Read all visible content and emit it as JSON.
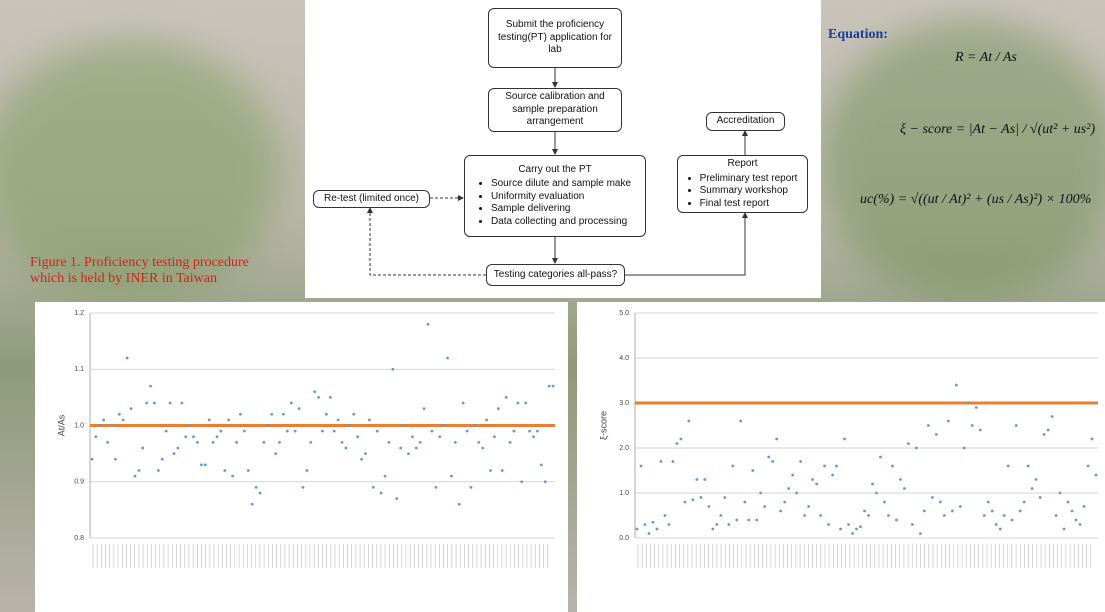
{
  "flowchart": {
    "nodes": [
      {
        "label": "Submit the proficiency testing(PT) application for lab"
      },
      {
        "label": "Source calibration and sample preparation arrangement"
      },
      {
        "label": "Carry out the PT",
        "items": [
          "Source dilute and sample make",
          "Uniformity evaluation",
          "Sample delivering",
          "Data collecting and processing"
        ]
      },
      {
        "label": "Re-test (limited once)"
      },
      {
        "label": "Testing categories all-pass?"
      },
      {
        "label": "Report",
        "items": [
          "Preliminary test report",
          "Summary workshop",
          "Final test report"
        ]
      },
      {
        "label": "Accreditation"
      }
    ]
  },
  "caption": [
    "Figure 1.  Proficiency testing procedure",
    "which is held by INER in Taiwan"
  ],
  "equations": {
    "title": "Equation:",
    "items": [
      "R = At / As",
      "ξ − score = |At − As| / √(ut² + us²)",
      "uc(%) = √((ut / At)² + (us / As)²) × 100%"
    ]
  },
  "chart_data": [
    {
      "type": "scatter",
      "y_label": "At/As",
      "color": "#5b9bd5",
      "ref_line": 1,
      "ref_color": "#ed7d31",
      "grid": true,
      "ylim": [
        0.8,
        1.2
      ],
      "yticks": [
        0.8,
        0.9,
        {
          "value": 1,
          "label": "1.0"
        },
        1.1,
        1.2
      ],
      "values": [
        0.94,
        0.98,
        1.0,
        1.01,
        0.97,
        1.0,
        0.94,
        1.02,
        1.01,
        1.12,
        1.03,
        0.91,
        0.92,
        0.96,
        1.04,
        1.07,
        1.04,
        0.92,
        0.94,
        0.99,
        1.04,
        0.95,
        0.96,
        1.04,
        0.98,
        1.0,
        0.98,
        0.97,
        0.93,
        0.93,
        1.01,
        0.97,
        0.98,
        0.99,
        0.92,
        1.01,
        0.91,
        0.97,
        1.02,
        0.99,
        0.92,
        0.86,
        0.89,
        0.88,
        0.97,
        1.0,
        1.02,
        0.95,
        0.97,
        1.02,
        0.99,
        1.04,
        0.99,
        1.03,
        0.89,
        0.92,
        0.97,
        1.06,
        1.05,
        0.99,
        1.02,
        1.05,
        0.99,
        1.01,
        0.97,
        0.96,
        1.0,
        1.02,
        0.98,
        0.94,
        0.95,
        1.01,
        0.89,
        0.99,
        0.88,
        0.91,
        0.97,
        1.1,
        0.87,
        0.96,
        1.0,
        0.95,
        0.98,
        0.96,
        0.97,
        1.03,
        1.18,
        0.99,
        0.89,
        0.98,
        1.0,
        1.12,
        0.91,
        0.97,
        0.86,
        1.04,
        0.99,
        0.89,
        1.0,
        0.97,
        0.96,
        1.01,
        0.92,
        0.98,
        1.03,
        0.92,
        1.05,
        0.97,
        0.99,
        1.04,
        0.9,
        1.04,
        0.99,
        0.98,
        0.99,
        0.93,
        0.9,
        1.07,
        1.07
      ]
    },
    {
      "type": "scatter",
      "y_label": "ξ-score",
      "color": "#5b9bd5",
      "ref_line": 3,
      "ref_color": "#ed7d31",
      "grid": true,
      "ylim": [
        0,
        5
      ],
      "yticks": [
        {
          "value": 0,
          "label": "0.0"
        },
        {
          "value": 1,
          "label": "1.0"
        },
        {
          "value": 2,
          "label": "2.0"
        },
        {
          "value": 3,
          "label": "3.0"
        },
        {
          "value": 4,
          "label": "4.0"
        },
        {
          "value": 5,
          "label": "5.0"
        }
      ],
      "values": [
        0.2,
        1.6,
        0.3,
        0.1,
        0.35,
        0.2,
        1.7,
        0.5,
        0.3,
        1.7,
        2.1,
        2.2,
        0.8,
        2.6,
        0.85,
        1.3,
        0.9,
        1.3,
        0.7,
        0.2,
        0.3,
        0.5,
        0.9,
        0.3,
        1.6,
        0.4,
        2.6,
        0.8,
        0.4,
        1.5,
        0.4,
        1.0,
        0.7,
        1.8,
        1.7,
        2.2,
        0.6,
        0.8,
        1.1,
        1.4,
        1.0,
        1.7,
        0.5,
        0.7,
        1.3,
        1.2,
        0.5,
        1.6,
        0.3,
        1.4,
        1.6,
        0.2,
        2.2,
        0.3,
        0.1,
        0.2,
        0.25,
        0.6,
        0.5,
        1.2,
        1.0,
        1.8,
        0.8,
        0.5,
        1.6,
        0.4,
        1.3,
        1.1,
        2.1,
        0.3,
        2.0,
        0.1,
        0.6,
        2.5,
        0.9,
        2.3,
        0.8,
        0.5,
        2.6,
        0.6,
        3.4,
        0.7,
        2.0,
        3.0,
        2.5,
        2.9,
        2.4,
        0.5,
        0.8,
        0.6,
        0.3,
        0.2,
        0.5,
        1.6,
        0.4,
        2.5,
        0.6,
        0.8,
        1.6,
        1.1,
        1.3,
        0.9,
        2.3,
        2.4,
        2.7,
        0.5,
        1.0,
        0.2,
        0.8,
        0.6,
        0.4,
        0.3,
        0.7,
        1.6,
        2.2,
        1.4
      ]
    }
  ]
}
